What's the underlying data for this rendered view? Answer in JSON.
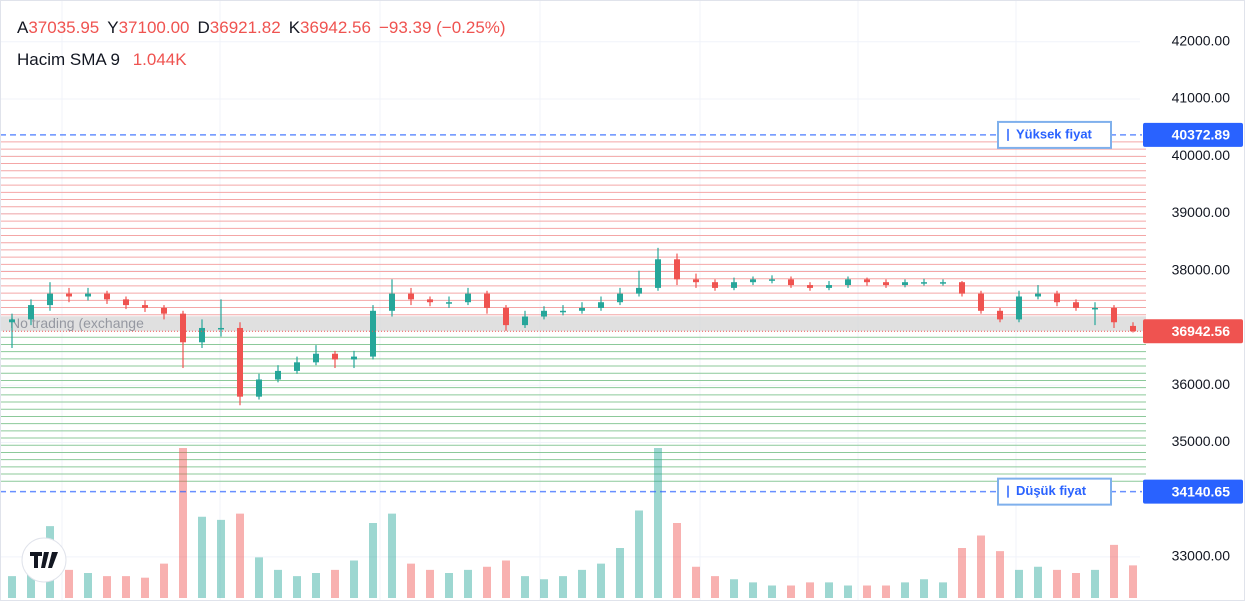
{
  "chart_data": {
    "type": "candlestick",
    "header": [
      {
        "key": "A",
        "value": "37035.95"
      },
      {
        "key": "Y",
        "value": "37100.00"
      },
      {
        "key": "D",
        "value": "36921.82"
      },
      {
        "key": "K",
        "value": "36942.56"
      }
    ],
    "change": "−93.39 (−0.25%)",
    "volume_label": "Hacim SMA 9",
    "volume_value": "1.044K",
    "annotation": "No trading (exchange",
    "up_color": "#26a69a",
    "down_color": "#ef5350",
    "ylim": [
      32230,
      42730
    ],
    "yticks": [
      {
        "value": 42000,
        "label": "42000.00"
      },
      {
        "value": 41000,
        "label": "41000.00"
      },
      {
        "value": 40000,
        "label": "40000.00"
      },
      {
        "value": 39000,
        "label": "39000.00"
      },
      {
        "value": 38000,
        "label": "38000.00"
      },
      {
        "value": 36000,
        "label": "36000.00"
      },
      {
        "value": 35000,
        "label": "35000.00"
      },
      {
        "value": 33000,
        "label": "33000.00"
      }
    ],
    "high_line": {
      "label": "Yüksek fiyat",
      "value": 40372.89,
      "value_label": "40372.89",
      "color": "#2962ff"
    },
    "low_line": {
      "label": "Düşük fiyat",
      "value": 34140.65,
      "value_label": "34140.65",
      "color": "#2962ff"
    },
    "last_price": {
      "value": 36942.56,
      "value_label": "36942.56"
    },
    "open": [
      37100,
      37150,
      37400,
      37600,
      37550,
      37600,
      37500,
      37400,
      37350,
      37250,
      36750,
      37000,
      37000,
      35800,
      36100,
      36250,
      36400,
      36550,
      36450,
      36500,
      37300,
      37600,
      37500,
      37450,
      37450,
      37600,
      37350,
      37050,
      37200,
      37300,
      37300,
      37350,
      37450,
      37600,
      37700,
      38200,
      37850,
      37800,
      37700,
      37800,
      37850,
      37850,
      37750,
      37700,
      37750,
      37850,
      37800,
      37750,
      37800,
      37800,
      37800,
      37600,
      37300,
      37150,
      37550,
      37600,
      37450,
      37350,
      37350,
      37035.95
    ],
    "high": [
      37250,
      37500,
      37800,
      37700,
      37700,
      37650,
      37550,
      37480,
      37400,
      37300,
      37150,
      37500,
      37100,
      36200,
      36350,
      36500,
      36700,
      36600,
      36600,
      37400,
      37850,
      37700,
      37550,
      37550,
      37700,
      37650,
      37400,
      37300,
      37380,
      37400,
      37450,
      37550,
      37700,
      38000,
      38400,
      38300,
      37950,
      37850,
      37880,
      37900,
      37920,
      37900,
      37800,
      37820,
      37900,
      37880,
      37850,
      37850,
      37860,
      37850,
      37820,
      37650,
      37350,
      37650,
      37750,
      37650,
      37500,
      37450,
      37400,
      37100
    ],
    "low": [
      36650,
      37050,
      37300,
      37450,
      37480,
      37420,
      37330,
      37280,
      37150,
      36300,
      36650,
      36850,
      35650,
      35750,
      36050,
      36200,
      36350,
      36300,
      36300,
      36450,
      37200,
      37400,
      37380,
      37350,
      37400,
      37250,
      36950,
      37000,
      37150,
      37220,
      37250,
      37300,
      37400,
      37550,
      37650,
      37750,
      37700,
      37650,
      37660,
      37750,
      37780,
      37700,
      37650,
      37660,
      37700,
      37740,
      37700,
      37710,
      37740,
      37740,
      37550,
      37250,
      37100,
      37100,
      37500,
      37380,
      37300,
      37050,
      37000,
      36921.82
    ],
    "close": [
      37150,
      37400,
      37600,
      37550,
      37600,
      37500,
      37400,
      37350,
      37250,
      36750,
      37000,
      37000,
      35800,
      36100,
      36250,
      36400,
      36550,
      36450,
      36500,
      37300,
      37600,
      37500,
      37450,
      37450,
      37600,
      37350,
      37050,
      37200,
      37300,
      37300,
      37350,
      37450,
      37600,
      37700,
      38200,
      37850,
      37800,
      37700,
      37800,
      37850,
      37850,
      37750,
      37700,
      37750,
      37850,
      37800,
      37750,
      37800,
      37800,
      37800,
      37600,
      37300,
      37150,
      37550,
      37600,
      37450,
      37350,
      37350,
      37100,
      36942.56
    ],
    "volume": [
      700,
      1500,
      2300,
      900,
      800,
      700,
      700,
      650,
      1100,
      4800,
      2600,
      2500,
      2700,
      1300,
      900,
      700,
      800,
      900,
      1200,
      2400,
      2700,
      1100,
      900,
      800,
      900,
      1000,
      1200,
      700,
      600,
      700,
      900,
      1100,
      1600,
      2800,
      4800,
      2400,
      1000,
      700,
      600,
      500,
      400,
      400,
      500,
      500,
      400,
      400,
      400,
      500,
      600,
      500,
      1600,
      2000,
      1500,
      900,
      1000,
      900,
      800,
      900,
      1700,
      1044
    ]
  }
}
